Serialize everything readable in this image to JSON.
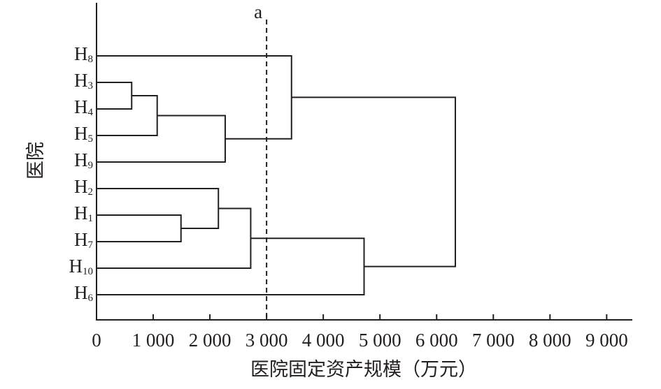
{
  "chart_data": {
    "type": "dendrogram",
    "x_label": "医院固定资产规模（万元）",
    "y_label": "医院",
    "xlim": [
      0,
      9440
    ],
    "xticks": [
      0,
      {
        "value": 1000,
        "label": "1 000"
      },
      {
        "value": 2000,
        "label": "2 000"
      },
      {
        "value": 3000,
        "label": "3 000"
      },
      {
        "value": 4000,
        "label": "4 000"
      },
      {
        "value": 5000,
        "label": "5 000"
      },
      {
        "value": 6000,
        "label": "6 000"
      },
      {
        "value": 7000,
        "label": "7 000"
      },
      {
        "value": 8000,
        "label": "8 000"
      },
      {
        "value": 9000,
        "label": "9 000"
      }
    ],
    "threshold": {
      "value": 3000,
      "label": "a"
    },
    "tree": {
      "height": 6330,
      "children": [
        {
          "height": 3440,
          "children": [
            {
              "label": "H",
              "sub": "8"
            },
            {
              "height": 2270,
              "children": [
                {
                  "height": 1070,
                  "children": [
                    {
                      "height": 620,
                      "children": [
                        {
                          "label": "H",
                          "sub": "3"
                        },
                        {
                          "label": "H",
                          "sub": "4"
                        }
                      ]
                    },
                    {
                      "label": "H",
                      "sub": "5"
                    }
                  ]
                },
                {
                  "label": "H",
                  "sub": "9"
                }
              ]
            }
          ]
        },
        {
          "height": 4720,
          "children": [
            {
              "height": 2720,
              "children": [
                {
                  "height": 2150,
                  "children": [
                    {
                      "label": "H",
                      "sub": "2"
                    },
                    {
                      "height": 1490,
                      "children": [
                        {
                          "label": "H",
                          "sub": "1"
                        },
                        {
                          "label": "H",
                          "sub": "7"
                        }
                      ]
                    }
                  ]
                },
                {
                  "label": "H",
                  "sub": "10"
                }
              ]
            },
            {
              "label": "H",
              "sub": "6"
            }
          ]
        }
      ]
    }
  }
}
